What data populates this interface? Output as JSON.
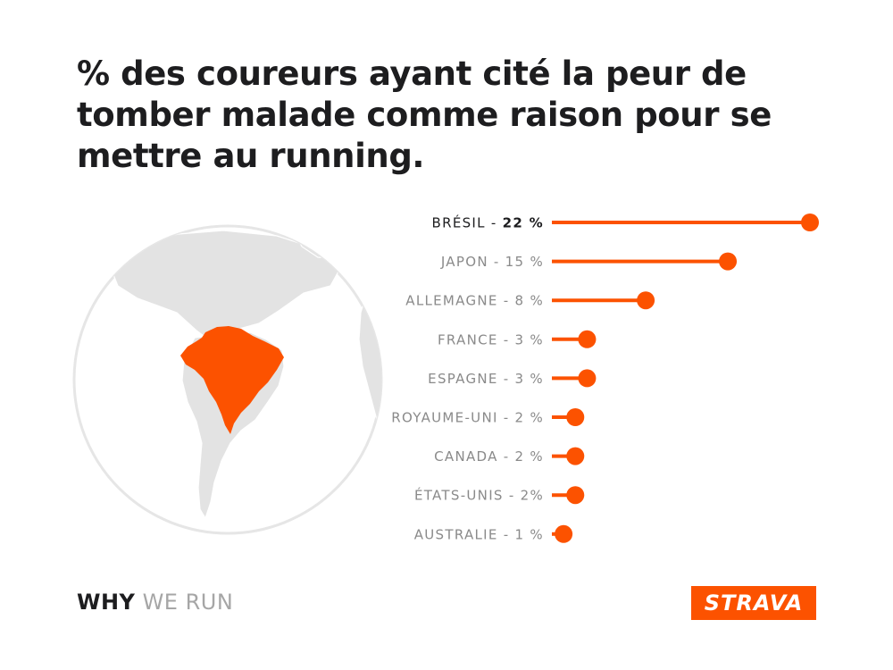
{
  "title": "% des coureurs ayant cité la peur de tomber malade comme raison pour se mettre au running.",
  "colors": {
    "accent": "#fc5200",
    "globe": "#e3e3e3",
    "text": "#1d1d1f",
    "muted": "#8a8a8a"
  },
  "map": {
    "highlighted_country": "Brésil"
  },
  "chart_data": {
    "type": "bar",
    "orientation": "horizontal",
    "style": "lollipop",
    "categories": [
      "BRÉSIL",
      "JAPON",
      "ALLEMAGNE",
      "FRANCE",
      "ESPAGNE",
      "ROYAUME-UNI",
      "CANADA",
      "ÉTATS-UNIS",
      "AUSTRALIE"
    ],
    "values": [
      22,
      15,
      8,
      3,
      3,
      2,
      2,
      2,
      1
    ],
    "labels": [
      "BRÉSIL - 22 %",
      "JAPON - 15 %",
      "ALLEMAGNE - 8 %",
      "FRANCE - 3 %",
      "ESPAGNE - 3 %",
      "ROYAUME-UNI - 2 %",
      "CANADA - 2 %",
      "ÉTATS-UNIS - 2%",
      "AUSTRALIE - 1 %"
    ],
    "highlight_index": 0,
    "xlim": [
      0,
      22
    ]
  },
  "footer": {
    "strong": "WHY",
    "light": "WE RUN"
  },
  "logo": {
    "text": "STRAVA"
  }
}
